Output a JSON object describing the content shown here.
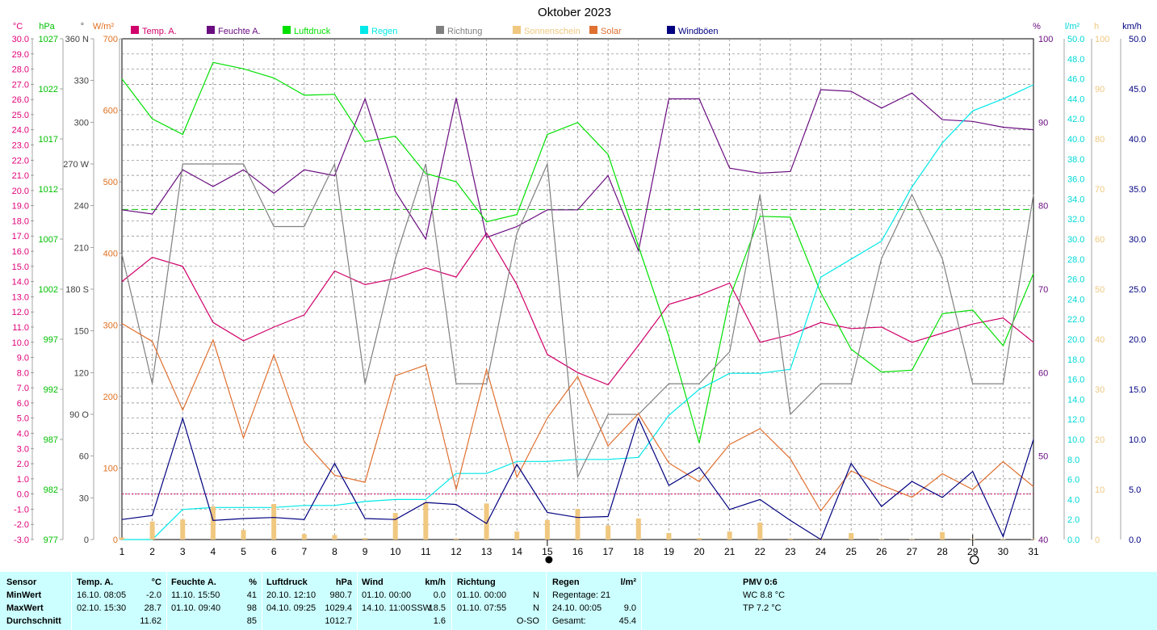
{
  "chart_data": {
    "type": "line",
    "title": "Oktober 2023",
    "x_labels": [
      "1",
      "2",
      "3",
      "4",
      "5",
      "6",
      "7",
      "8",
      "9",
      "10",
      "11",
      "12",
      "13",
      "14",
      "15",
      "16",
      "17",
      "18",
      "19",
      "20",
      "21",
      "22",
      "23",
      "24",
      "25",
      "26",
      "27",
      "28",
      "29",
      "30",
      "31"
    ],
    "x_range": [
      1,
      31
    ],
    "grid": true,
    "legend_position": "top",
    "moon_phases": [
      {
        "day": 15,
        "phase": "new-moon"
      },
      {
        "day": 29,
        "phase": "full-moon"
      }
    ],
    "axes": [
      {
        "id": "temp",
        "unit": "°C",
        "side": "left",
        "color": "#e0007a",
        "range": [
          -3.0,
          30.0
        ],
        "ticks": [
          "-3.0",
          "-2.0",
          "-1.0",
          "0.0",
          "1.0",
          "2.0",
          "3.0",
          "4.0",
          "5.0",
          "6.0",
          "7.0",
          "8.0",
          "9.0",
          "10.0",
          "11.0",
          "12.0",
          "13.0",
          "14.0",
          "15.0",
          "16.0",
          "17.0",
          "18.0",
          "19.0",
          "20.0",
          "21.0",
          "22.0",
          "23.0",
          "24.0",
          "25.0",
          "26.0",
          "27.0",
          "28.0",
          "29.0",
          "30.0"
        ]
      },
      {
        "id": "pressure",
        "unit": "hPa",
        "side": "left",
        "color": "#00c000",
        "range": [
          977,
          1032
        ],
        "ticks": [
          "977",
          "982",
          "987",
          "992",
          "997",
          "1002",
          "1007",
          "1012",
          "1017",
          "1022",
          "1027"
        ]
      },
      {
        "id": "direction",
        "unit": "°",
        "side": "left",
        "color": "#404040",
        "range": [
          0,
          360
        ],
        "ticks": [
          "0",
          "30",
          "60",
          "90 O",
          "120",
          "150",
          "180 S",
          "210",
          "240",
          "270 W",
          "300",
          "330",
          "360 N"
        ]
      },
      {
        "id": "solar",
        "unit": "W/m²",
        "side": "left",
        "color": "#e07020",
        "range": [
          0,
          700
        ],
        "ticks": [
          "0",
          "100",
          "200",
          "300",
          "400",
          "500",
          "600",
          "700"
        ]
      },
      {
        "id": "humidity",
        "unit": "%",
        "side": "right",
        "color": "#6a0d80",
        "range": [
          40,
          100
        ],
        "ticks": [
          "40",
          "50",
          "60",
          "70",
          "80",
          "90",
          "100"
        ]
      },
      {
        "id": "rain",
        "unit": "l/m²",
        "side": "right",
        "color": "#00d8d8",
        "range": [
          0,
          50
        ],
        "ticks": [
          "0.0",
          "2.0",
          "4.0",
          "6.0",
          "8.0",
          "10.0",
          "12.0",
          "14.0",
          "16.0",
          "18.0",
          "20.0",
          "22.0",
          "24.0",
          "26.0",
          "28.0",
          "30.0",
          "32.0",
          "34.0",
          "36.0",
          "38.0",
          "40.0",
          "42.0",
          "44.0",
          "46.0",
          "48.0",
          "50.0"
        ]
      },
      {
        "id": "sunshine",
        "unit": "h",
        "side": "right",
        "color": "#f0c880",
        "range": [
          0,
          100
        ],
        "ticks": [
          "0",
          "10",
          "20",
          "30",
          "40",
          "50",
          "60",
          "70",
          "80",
          "90",
          "100"
        ]
      },
      {
        "id": "gust",
        "unit": "km/h",
        "side": "right",
        "color": "#000080",
        "range": [
          0,
          50
        ],
        "ticks": [
          "0.0",
          "5.0",
          "10.0",
          "15.0",
          "20.0",
          "25.0",
          "30.0",
          "35.0",
          "40.0",
          "45.0",
          "50.0"
        ]
      }
    ],
    "series": [
      {
        "name": "Temp. A.",
        "axis": "temp",
        "color": "#d0006a",
        "values": [
          14.0,
          15.6,
          15.0,
          11.3,
          10.1,
          11.0,
          11.8,
          14.7,
          13.8,
          14.2,
          14.9,
          14.3,
          17.2,
          13.8,
          9.2,
          8.0,
          7.2,
          9.8,
          12.5,
          13.1,
          13.9,
          10.0,
          10.5,
          11.3,
          10.9,
          11.0,
          10.0,
          10.6,
          11.2,
          11.6,
          10.0
        ]
      },
      {
        "name": "Feuchte A.",
        "axis": "humidity",
        "color": "#6a0d80",
        "values": [
          79.5,
          79.0,
          84.3,
          82.3,
          84.3,
          81.5,
          84.3,
          83.6,
          92.8,
          81.7,
          76.0,
          92.9,
          76.2,
          77.5,
          79.5,
          79.5,
          83.6,
          74.6,
          92.8,
          92.8,
          84.5,
          83.9,
          84.1,
          93.9,
          93.7,
          91.7,
          93.5,
          90.3,
          90.1,
          89.4,
          89.1
        ]
      },
      {
        "name": "Luftdruck",
        "axis": "pressure",
        "color": "#00e000",
        "values": [
          1027.6,
          1023.2,
          1021.5,
          1029.4,
          1028.7,
          1027.7,
          1025.8,
          1025.9,
          1020.7,
          1021.3,
          1017.2,
          1016.3,
          1011.9,
          1012.7,
          1021.5,
          1022.8,
          1019.3,
          1009.2,
          999.3,
          987.6,
          1003.5,
          1012.5,
          1012.4,
          1004.1,
          997.9,
          995.4,
          995.6,
          1001.8,
          1002.2,
          998.3,
          1006.2
        ]
      },
      {
        "name": "Regen",
        "axis": "rain",
        "color": "#00e8e8",
        "values": [
          0.0,
          0.0,
          3.0,
          3.2,
          3.2,
          3.2,
          3.4,
          3.4,
          3.8,
          4.0,
          4.0,
          6.6,
          6.6,
          7.8,
          7.8,
          8.0,
          8.0,
          8.2,
          12.4,
          15.0,
          16.6,
          16.6,
          17.0,
          26.2,
          28.0,
          29.8,
          35.2,
          39.6,
          42.8,
          44.0,
          45.4
        ]
      },
      {
        "name": "Richtung",
        "axis": "direction",
        "color": "#808080",
        "values": [
          205,
          112,
          270,
          270,
          270,
          225,
          225,
          270,
          112,
          202,
          270,
          112,
          112,
          220,
          270,
          45,
          90,
          90,
          112,
          112,
          135,
          248,
          90,
          112,
          112,
          202,
          248,
          202,
          112,
          112,
          248
        ]
      },
      {
        "name": "Sonnenschein",
        "axis": "sunshine",
        "color": "#f0c880",
        "type": "bar",
        "values": [
          0.4,
          3.6,
          4.0,
          6.6,
          1.9,
          7.1,
          1.1,
          0.9,
          0.3,
          5.3,
          7.4,
          0.2,
          7.2,
          1.6,
          3.9,
          6.1,
          2.8,
          4.2,
          1.3,
          0.3,
          1.6,
          3.4,
          0.2,
          0.3,
          1.3,
          0.1,
          0.1,
          1.5,
          0.1,
          0.1,
          0.1
        ]
      },
      {
        "name": "Solar",
        "axis": "solar",
        "color": "#e07030",
        "values": [
          302,
          277,
          181,
          279,
          142,
          258,
          137,
          90,
          80,
          229,
          244,
          70,
          238,
          87,
          170,
          228,
          131,
          176,
          107,
          81,
          133,
          155,
          113,
          40,
          96,
          76,
          59,
          92,
          70,
          109,
          74
        ]
      },
      {
        "name": "Windböen",
        "axis": "gust",
        "color": "#000080",
        "values": [
          2.0,
          2.4,
          12.1,
          1.9,
          2.1,
          2.2,
          2.0,
          7.6,
          2.1,
          2.0,
          3.7,
          3.5,
          1.6,
          7.5,
          2.7,
          2.2,
          2.3,
          12.1,
          5.4,
          7.2,
          3.0,
          4.0,
          1.9,
          0.0,
          7.6,
          3.3,
          5.8,
          4.2,
          6.8,
          0.3,
          10.0
        ]
      }
    ],
    "reference_lines": [
      {
        "axis": "pressure",
        "value": 1013.25,
        "color": "#00c000",
        "style": "dashed"
      },
      {
        "axis": "temp",
        "value": 0.0,
        "color": "#d0006a",
        "style": "dotted"
      }
    ]
  },
  "summary": {
    "sensor": {
      "header": "Sensor",
      "rows": [
        "MinWert",
        "MaxWert",
        "Durchschnitt"
      ]
    },
    "temp": {
      "header": "Temp. A.",
      "unit": "°C",
      "min_time": "16.10.  08:05",
      "min_val": "-2.0",
      "max_time": "02.10.  15:30",
      "max_val": "28.7",
      "avg_val": "11.62"
    },
    "humidity": {
      "header": "Feuchte A.",
      "unit": "%",
      "min_time": "11.10.  15:50",
      "min_val": "41",
      "max_time": "01.10.  09:40",
      "max_val": "98",
      "avg_val": "85"
    },
    "pressure": {
      "header": "Luftdruck",
      "unit": "hPa",
      "min_time": "20.10.  12:10",
      "min_val": "980.7",
      "max_time": "04.10.  09:25",
      "max_val": "1029.4",
      "avg_val": "1012.7"
    },
    "wind": {
      "header": "Wind",
      "unit": "km/h",
      "min_time": "01.10.  00:00",
      "min_val": "0.0",
      "max_time": "14.10.  11:00",
      "max_dir": "SSW",
      "max_val": "18.5",
      "avg_val": "1.6"
    },
    "direction": {
      "header": "Richtung",
      "min_time": "01.10.  00:00",
      "min_val": "N",
      "max_time": "01.10.  07:55",
      "max_val": "N",
      "avg_val": "O-SO"
    },
    "rain": {
      "header": "Regen",
      "unit": "l/m²",
      "days_label": "Regentage: 21",
      "max_time": "24.10.  00:05",
      "max_val": "9.0",
      "total_label": "Gesamt:",
      "total_val": "45.4"
    },
    "pmv": {
      "header": "PMV 0:6",
      "wc": "WC 8.8 °C",
      "tp": "TP 7.2 °C"
    }
  }
}
